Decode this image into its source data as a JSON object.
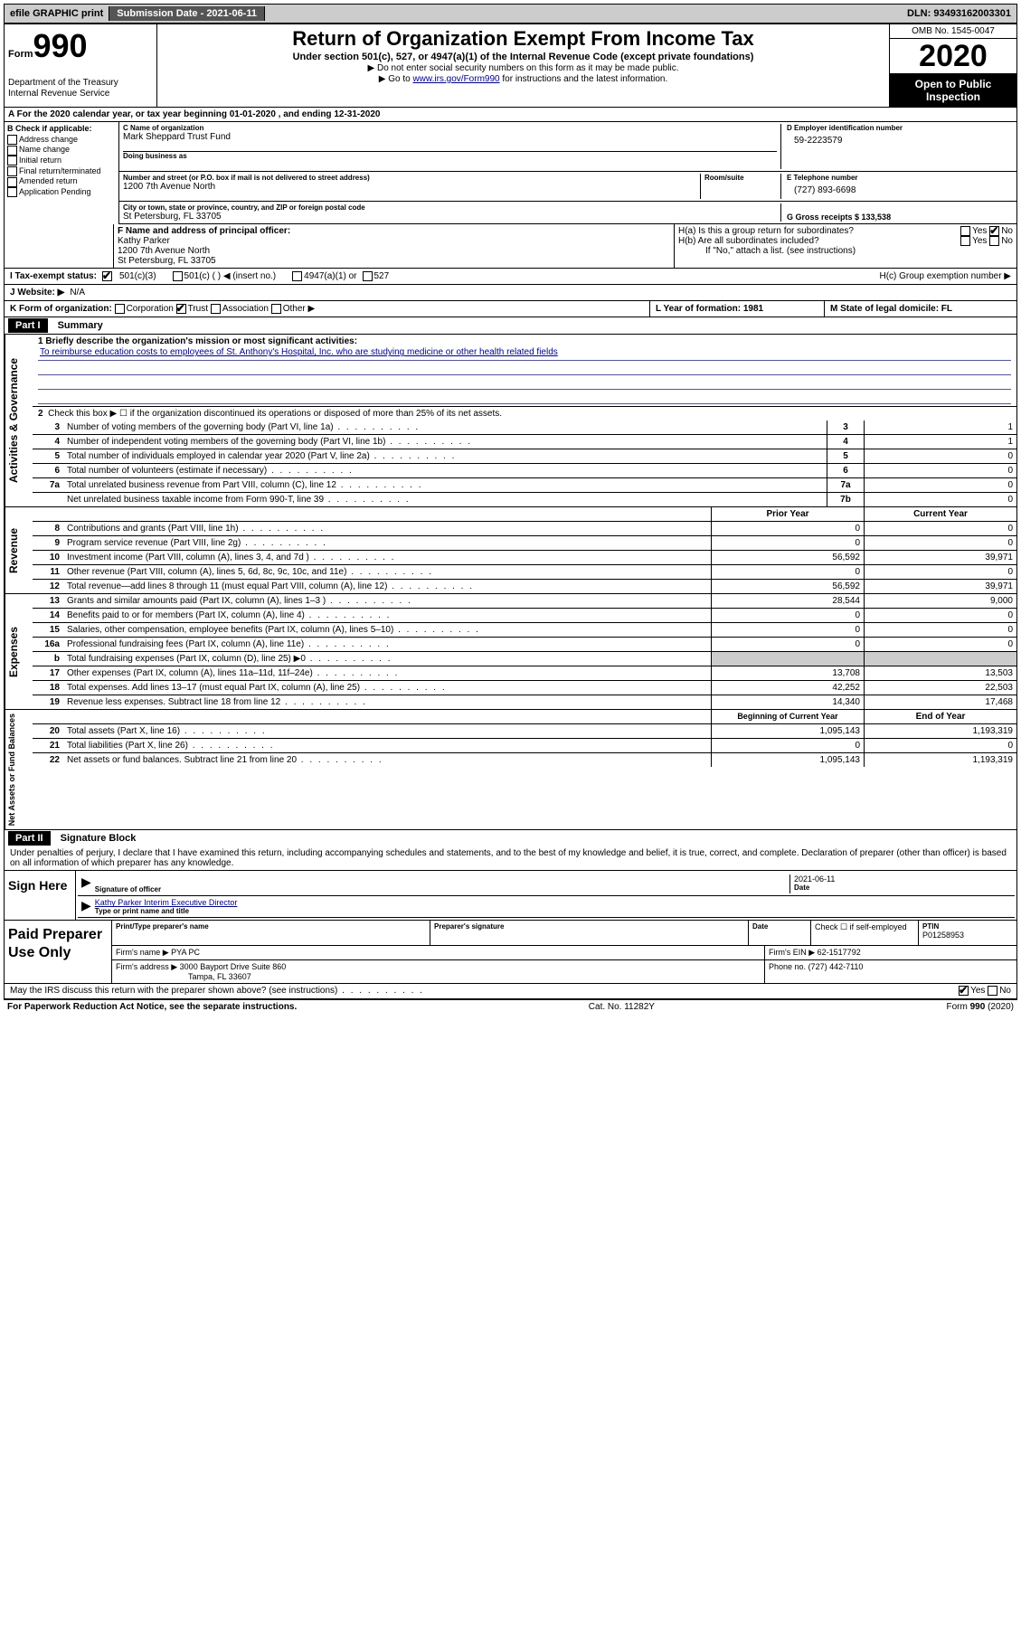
{
  "topbar": {
    "efile": "efile GRAPHIC print",
    "submission_label": "Submission Date - 2021-06-11",
    "dln": "DLN: 93493162003301"
  },
  "header": {
    "form_prefix": "Form",
    "form_number": "990",
    "dept": "Department of the Treasury",
    "irs": "Internal Revenue Service",
    "title": "Return of Organization Exempt From Income Tax",
    "subtitle": "Under section 501(c), 527, or 4947(a)(1) of the Internal Revenue Code (except private foundations)",
    "note1": "▶ Do not enter social security numbers on this form as it may be made public.",
    "note2_pre": "▶ Go to ",
    "note2_link": "www.irs.gov/Form990",
    "note2_post": " for instructions and the latest information.",
    "omb": "OMB No. 1545-0047",
    "year": "2020",
    "inspection": "Open to Public Inspection"
  },
  "row_a": "A For the 2020 calendar year, or tax year beginning 01-01-2020  , and ending 12-31-2020",
  "col_b": {
    "label": "B Check if applicable:",
    "opts": [
      "Address change",
      "Name change",
      "Initial return",
      "Final return/terminated",
      "Amended return",
      "Application Pending"
    ]
  },
  "c": {
    "name_lbl": "C Name of organization",
    "name": "Mark Sheppard Trust Fund",
    "dba_lbl": "Doing business as",
    "addr_lbl": "Number and street (or P.O. box if mail is not delivered to street address)",
    "room_lbl": "Room/suite",
    "addr": "1200 7th Avenue North",
    "city_lbl": "City or town, state or province, country, and ZIP or foreign postal code",
    "city": "St Petersburg, FL  33705"
  },
  "d": {
    "ein_lbl": "D Employer identification number",
    "ein": "59-2223579",
    "tel_lbl": "E Telephone number",
    "tel": "(727) 893-6698",
    "gross_lbl": "G Gross receipts $ 133,538"
  },
  "f": {
    "lbl": "F  Name and address of principal officer:",
    "name": "Kathy Parker",
    "addr1": "1200 7th Avenue North",
    "addr2": "St Petersburg, FL  33705"
  },
  "h": {
    "a_lbl": "H(a)  Is this a group return for subordinates?",
    "b_lbl": "H(b)  Are all subordinates included?",
    "b_note": "If \"No,\" attach a list. (see instructions)",
    "c_lbl": "H(c)  Group exemption number ▶",
    "yes": "Yes",
    "no": "No"
  },
  "i": {
    "lbl": "I  Tax-exempt status:",
    "c3": "501(c)(3)",
    "c": "501(c) (  ) ◀ (insert no.)",
    "a1": "4947(a)(1) or",
    "s527": "527"
  },
  "j": {
    "lbl": "J  Website: ▶",
    "val": "N/A"
  },
  "k": {
    "lbl": "K Form of organization:",
    "corp": "Corporation",
    "trust": "Trust",
    "assoc": "Association",
    "other": "Other ▶"
  },
  "l": {
    "lbl": "L Year of formation: 1981"
  },
  "m": {
    "lbl": "M State of legal domicile: FL"
  },
  "part1": {
    "header": "Part I",
    "title": "Summary",
    "mission_lbl": "1   Briefly describe the organization's mission or most significant activities:",
    "mission": "To reimburse education costs to employees of St. Anthony's Hospital, Inc. who are studying medicine or other health related fields",
    "line2": "Check this box ▶ ☐ if the organization discontinued its operations or disposed of more than 25% of its net assets.",
    "rows_gov": [
      {
        "n": "3",
        "t": "Number of voting members of the governing body (Part VI, line 1a)",
        "box": "3",
        "v": "1"
      },
      {
        "n": "4",
        "t": "Number of independent voting members of the governing body (Part VI, line 1b)",
        "box": "4",
        "v": "1"
      },
      {
        "n": "5",
        "t": "Total number of individuals employed in calendar year 2020 (Part V, line 2a)",
        "box": "5",
        "v": "0"
      },
      {
        "n": "6",
        "t": "Total number of volunteers (estimate if necessary)",
        "box": "6",
        "v": "0"
      },
      {
        "n": "7a",
        "t": "Total unrelated business revenue from Part VIII, column (C), line 12",
        "box": "7a",
        "v": "0"
      },
      {
        "n": "",
        "t": "Net unrelated business taxable income from Form 990-T, line 39",
        "box": "7b",
        "v": "0"
      }
    ],
    "col_prior": "Prior Year",
    "col_current": "Current Year",
    "rows_rev": [
      {
        "n": "8",
        "t": "Contributions and grants (Part VIII, line 1h)",
        "p": "0",
        "c": "0"
      },
      {
        "n": "9",
        "t": "Program service revenue (Part VIII, line 2g)",
        "p": "0",
        "c": "0"
      },
      {
        "n": "10",
        "t": "Investment income (Part VIII, column (A), lines 3, 4, and 7d )",
        "p": "56,592",
        "c": "39,971"
      },
      {
        "n": "11",
        "t": "Other revenue (Part VIII, column (A), lines 5, 6d, 8c, 9c, 10c, and 11e)",
        "p": "0",
        "c": "0"
      },
      {
        "n": "12",
        "t": "Total revenue—add lines 8 through 11 (must equal Part VIII, column (A), line 12)",
        "p": "56,592",
        "c": "39,971"
      }
    ],
    "rows_exp": [
      {
        "n": "13",
        "t": "Grants and similar amounts paid (Part IX, column (A), lines 1–3 )",
        "p": "28,544",
        "c": "9,000"
      },
      {
        "n": "14",
        "t": "Benefits paid to or for members (Part IX, column (A), line 4)",
        "p": "0",
        "c": "0"
      },
      {
        "n": "15",
        "t": "Salaries, other compensation, employee benefits (Part IX, column (A), lines 5–10)",
        "p": "0",
        "c": "0"
      },
      {
        "n": "16a",
        "t": "Professional fundraising fees (Part IX, column (A), line 11e)",
        "p": "0",
        "c": "0"
      },
      {
        "n": "b",
        "t": "Total fundraising expenses (Part IX, column (D), line 25) ▶0",
        "p": "",
        "c": "",
        "gray": true
      },
      {
        "n": "17",
        "t": "Other expenses (Part IX, column (A), lines 11a–11d, 11f–24e)",
        "p": "13,708",
        "c": "13,503"
      },
      {
        "n": "18",
        "t": "Total expenses. Add lines 13–17 (must equal Part IX, column (A), line 25)",
        "p": "42,252",
        "c": "22,503"
      },
      {
        "n": "19",
        "t": "Revenue less expenses. Subtract line 18 from line 12",
        "p": "14,340",
        "c": "17,468"
      }
    ],
    "col_begin": "Beginning of Current Year",
    "col_end": "End of Year",
    "rows_net": [
      {
        "n": "20",
        "t": "Total assets (Part X, line 16)",
        "p": "1,095,143",
        "c": "1,193,319"
      },
      {
        "n": "21",
        "t": "Total liabilities (Part X, line 26)",
        "p": "0",
        "c": "0"
      },
      {
        "n": "22",
        "t": "Net assets or fund balances. Subtract line 21 from line 20",
        "p": "1,095,143",
        "c": "1,193,319"
      }
    ]
  },
  "vert": {
    "gov": "Activities & Governance",
    "rev": "Revenue",
    "exp": "Expenses",
    "net": "Net Assets or Fund Balances"
  },
  "part2": {
    "header": "Part II",
    "title": "Signature Block",
    "perjury": "Under penalties of perjury, I declare that I have examined this return, including accompanying schedules and statements, and to the best of my knowledge and belief, it is true, correct, and complete. Declaration of preparer (other than officer) is based on all information of which preparer has any knowledge."
  },
  "sign": {
    "here": "Sign Here",
    "sig_lbl": "Signature of officer",
    "date_lbl": "Date",
    "date": "2021-06-11",
    "name": "Kathy Parker  Interim Executive Director",
    "name_lbl": "Type or print name and title"
  },
  "prep": {
    "label": "Paid Preparer Use Only",
    "print_lbl": "Print/Type preparer's name",
    "sig_lbl": "Preparer's signature",
    "date_lbl": "Date",
    "check_lbl": "Check ☐ if self-employed",
    "ptin_lbl": "PTIN",
    "ptin": "P01258953",
    "firm_name_lbl": "Firm's name   ▶",
    "firm_name": "PYA PC",
    "firm_ein_lbl": "Firm's EIN ▶",
    "firm_ein": "62-1517792",
    "firm_addr_lbl": "Firm's address ▶",
    "firm_addr1": "3000 Bayport Drive Suite 860",
    "firm_addr2": "Tampa, FL  33607",
    "phone_lbl": "Phone no.",
    "phone": "(727) 442-7110"
  },
  "discuss": {
    "q": "May the IRS discuss this return with the preparer shown above? (see instructions)",
    "yes": "Yes",
    "no": "No"
  },
  "footer": {
    "left": "For Paperwork Reduction Act Notice, see the separate instructions.",
    "mid": "Cat. No. 11282Y",
    "right": "Form 990 (2020)"
  }
}
